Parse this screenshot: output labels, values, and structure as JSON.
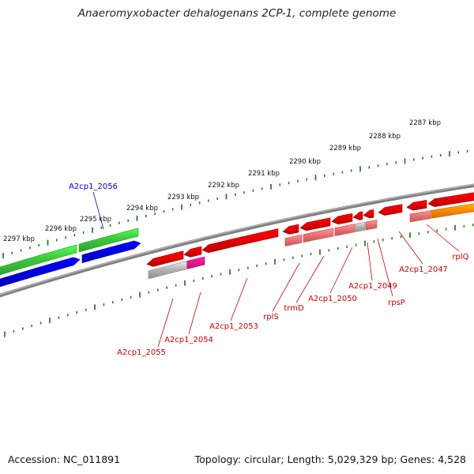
{
  "title": "Anaeromyxobacter dehalogenans 2CP-1, complete genome",
  "footer": {
    "accession": "Accession: NC_011891",
    "summary": "Topology: circular; Length: 5,029,329 bp; Genes: 4,528"
  },
  "colors": {
    "background": "#ffffff",
    "backbone": "#808080",
    "tick": "#2e7d32",
    "forward_gene_green": "#3cc83c",
    "forward_gene_blue": "#0000e6",
    "reverse_gene_red": "#e60000",
    "reverse_gene_light_red": "#ef7070",
    "reverse_gene_pink": "#e6198c",
    "reverse_gene_orange": "#ff8c00",
    "reverse_gene_gray": "#b4b4b4",
    "label_blue": "#0000cc",
    "label_red": "#cc0000"
  },
  "scale": {
    "ticks": [
      {
        "label": "2297 kbp"
      },
      {
        "label": "2296 kbp"
      },
      {
        "label": "2295 kbp"
      },
      {
        "label": "2294 kbp"
      },
      {
        "label": "2293 kbp"
      },
      {
        "label": "2292 kbp"
      },
      {
        "label": "2291 kbp"
      },
      {
        "label": "2290 kbp"
      },
      {
        "label": "2289 kbp"
      },
      {
        "label": "2288 kbp"
      },
      {
        "label": "2287 kbp"
      }
    ]
  },
  "gene_labels": [
    {
      "name": "A2cp1_2056",
      "strand": "forward"
    },
    {
      "name": "A2cp1_2055",
      "strand": "reverse"
    },
    {
      "name": "A2cp1_2054",
      "strand": "reverse"
    },
    {
      "name": "A2cp1_2053",
      "strand": "reverse"
    },
    {
      "name": "rplS",
      "strand": "reverse"
    },
    {
      "name": "trmD",
      "strand": "reverse"
    },
    {
      "name": "A2cp1_2050",
      "strand": "reverse"
    },
    {
      "name": "A2cp1_2049",
      "strand": "reverse"
    },
    {
      "name": "rpsP",
      "strand": "reverse"
    },
    {
      "name": "A2cp1_2047",
      "strand": "reverse"
    },
    {
      "name": "rplQ",
      "strand": "reverse"
    }
  ]
}
